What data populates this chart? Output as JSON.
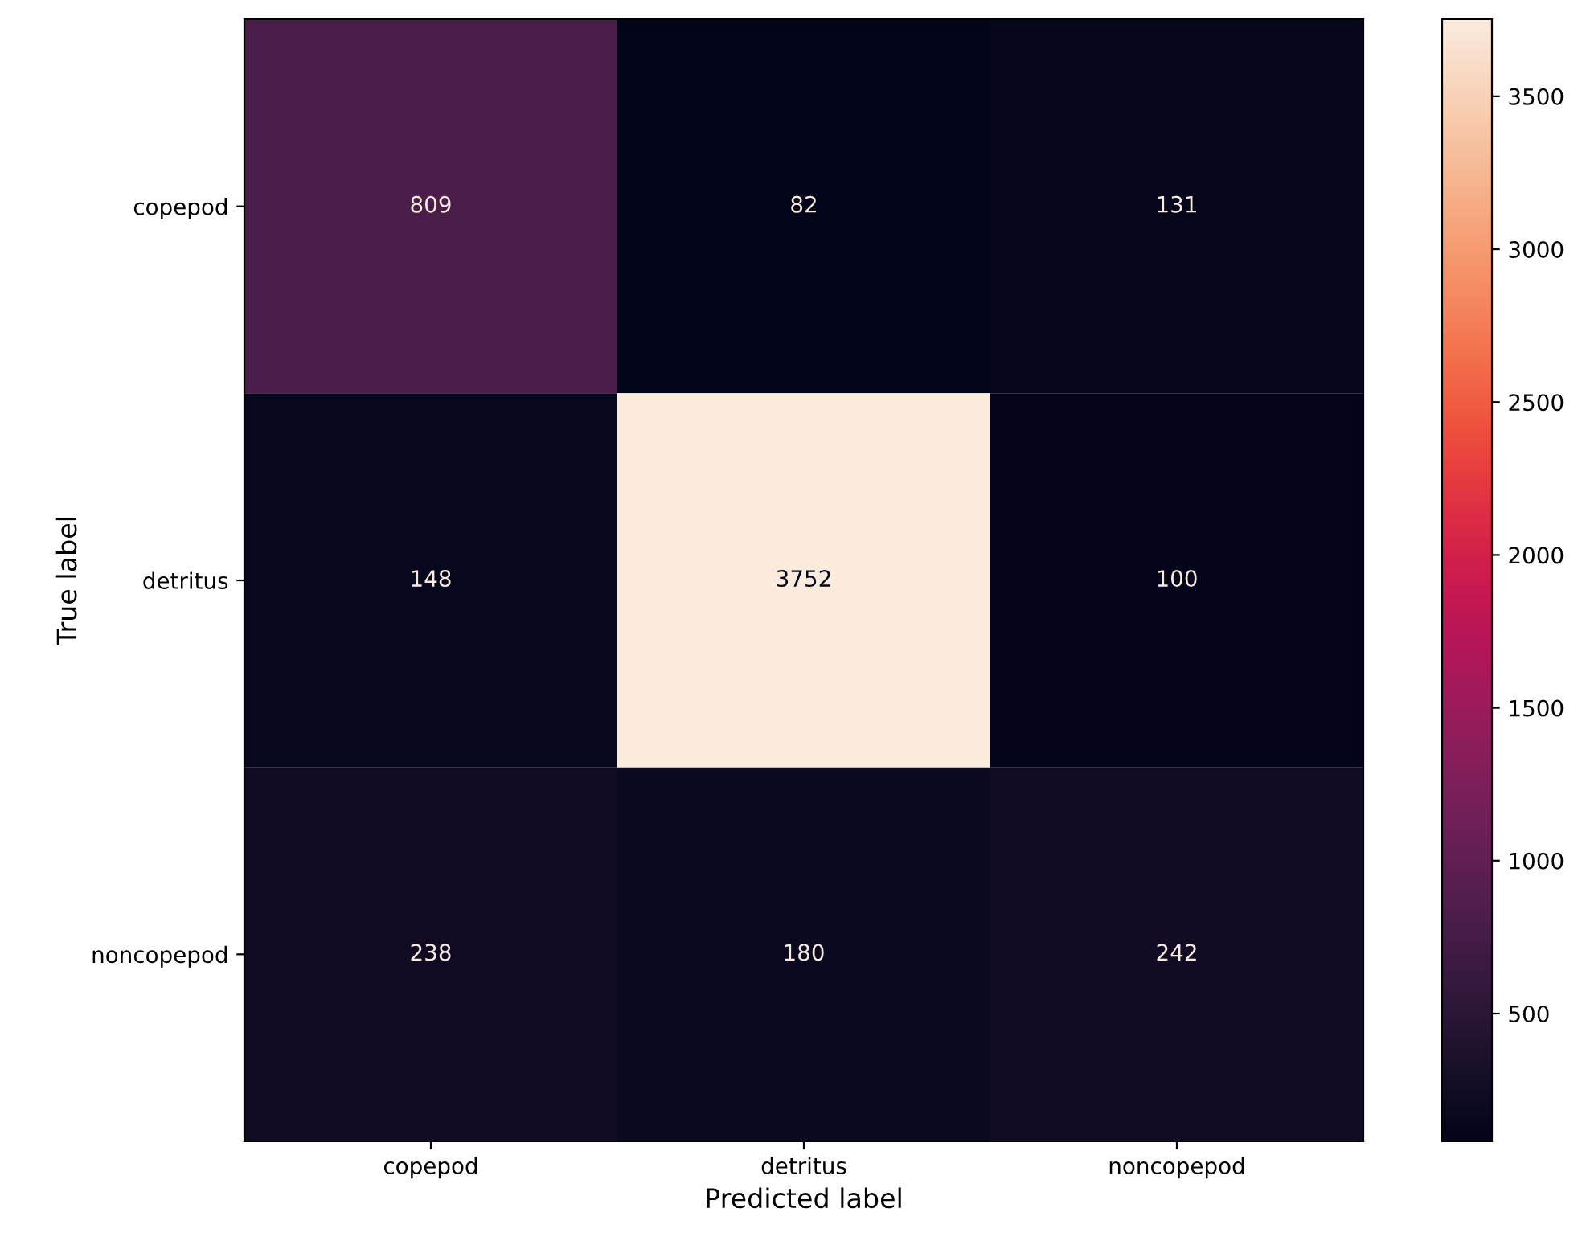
{
  "chart_data": {
    "type": "heatmap",
    "xlabel": "Predicted label",
    "ylabel": "True label",
    "categories": [
      "copepod",
      "detritus",
      "noncopepod"
    ],
    "y_categories": [
      "copepod",
      "detritus",
      "noncopepod"
    ],
    "cells": [
      [
        809,
        82,
        131
      ],
      [
        148,
        3752,
        100
      ],
      [
        238,
        180,
        242
      ]
    ],
    "clim": [
      82,
      3752
    ],
    "cticks": [
      500,
      1000,
      1500,
      2000,
      2500,
      3000,
      3500
    ],
    "data_labels": true
  }
}
